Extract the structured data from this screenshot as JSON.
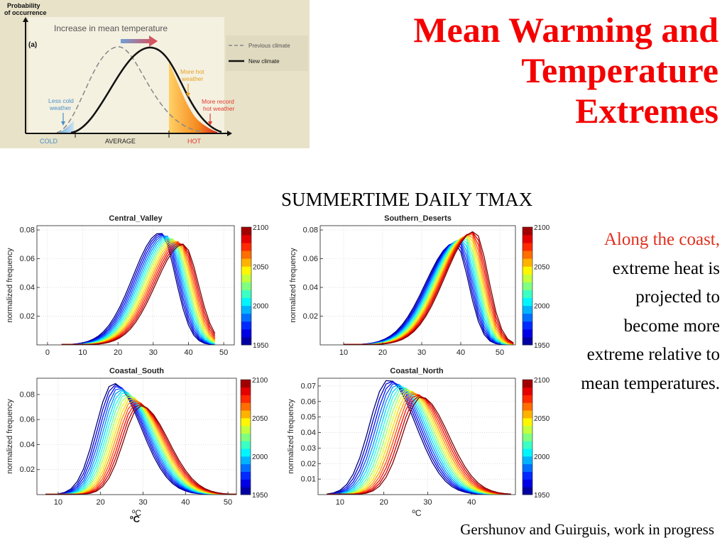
{
  "slide": {
    "title_line1": "Mean Warming and",
    "title_line2": "Temperature",
    "title_line3": "Extremes",
    "subtitle": "SUMMERTIME DAILY TMAX",
    "note_red": "Along the coast,",
    "note_black": " extreme heat is projected to become more extreme relative to mean temperatures.",
    "credit": "Gershunov and Guirguis, work in progress",
    "degc_label": "ºC"
  },
  "inset": {
    "ylabel_line1": "Probability",
    "ylabel_line2": "of occurrence",
    "panel_label": "(a)",
    "heading": "Increase in mean temperature",
    "legend_previous": "Previous climate",
    "legend_new": "New climate",
    "less_cold_line1": "Less cold",
    "less_cold_line2": "weather",
    "more_hot_line1": "More hot",
    "more_hot_line2": "weather",
    "record_line1": "More record",
    "record_line2": "hot weather",
    "cold": "COLD",
    "average": "AVERAGE",
    "hot": "HOT"
  },
  "chart_data": [
    {
      "type": "line",
      "title": "Central_Valley",
      "ylabel": "normalized frequency",
      "xlim": [
        -3,
        53
      ],
      "ylim": [
        0,
        0.083
      ],
      "xticks": [
        0,
        10,
        20,
        30,
        40,
        50
      ],
      "yticks": [
        0.02,
        0.04,
        0.06,
        0.08
      ],
      "x_axis_label": "",
      "colorbar": {
        "min": 1950,
        "max": 2100,
        "ticks": [
          1950,
          2000,
          2050,
          2100
        ]
      },
      "series_model": {
        "first_decade": 1950,
        "last_decade": 2100,
        "step": 10,
        "peak_x_first": 32,
        "peak_x_last": 38.5,
        "peak_y_first": 0.078,
        "peak_y_last": 0.07,
        "sigma_left": 7.8,
        "sigma_right": 4.3,
        "support": [
          4,
          48
        ]
      }
    },
    {
      "type": "line",
      "title": "Southern_Deserts",
      "ylabel": "normalized frequency",
      "xlim": [
        4,
        54
      ],
      "ylim": [
        0,
        0.083
      ],
      "xticks": [
        10,
        20,
        30,
        40,
        50
      ],
      "yticks": [
        0.02,
        0.04,
        0.06,
        0.08
      ],
      "x_axis_label": "",
      "colorbar": {
        "min": 1950,
        "max": 2100,
        "ticks": [
          1950,
          2000,
          2050,
          2100
        ]
      },
      "series_model": {
        "first_decade": 1950,
        "last_decade": 2100,
        "step": 10,
        "peak_x_first": 38.5,
        "peak_x_last": 43.5,
        "peak_y_first": 0.071,
        "peak_y_last": 0.079,
        "sigma_left": 7.5,
        "sigma_right": 3.5,
        "support": [
          10,
          54
        ]
      }
    },
    {
      "type": "line",
      "title": "Coastal_South",
      "ylabel": "normalized frequency",
      "xlim": [
        5,
        52
      ],
      "ylim": [
        0,
        0.093
      ],
      "xticks": [
        10,
        20,
        30,
        40,
        50
      ],
      "yticks": [
        0.02,
        0.04,
        0.06,
        0.08
      ],
      "x_axis_label": "ºC",
      "colorbar": {
        "min": 1950,
        "max": 2100,
        "ticks": [
          1950,
          2000,
          2050,
          2100
        ]
      },
      "series_model": {
        "first_decade": 1950,
        "last_decade": 2100,
        "step": 10,
        "peak_x_first": 23,
        "peak_x_last": 29.5,
        "peak_y_first": 0.089,
        "peak_y_last": 0.071,
        "sigma_left": 4.1,
        "sigma_right": 6.5,
        "support": [
          7,
          52
        ]
      }
    },
    {
      "type": "line",
      "title": "Coastal_North",
      "ylabel": "normalized frequency",
      "xlim": [
        5,
        50
      ],
      "ylim": [
        0,
        0.075
      ],
      "xticks": [
        10,
        20,
        30,
        40
      ],
      "yticks": [
        0.01,
        0.02,
        0.03,
        0.04,
        0.05,
        0.06,
        0.07
      ],
      "x_axis_label": "ºC",
      "colorbar": {
        "min": 1950,
        "max": 2100,
        "ticks": [
          1950,
          2000,
          2050,
          2100
        ]
      },
      "series_model": {
        "first_decade": 1950,
        "last_decade": 2100,
        "step": 10,
        "peak_x_first": 21,
        "peak_x_last": 28.5,
        "peak_y_first": 0.074,
        "peak_y_last": 0.063,
        "sigma_left": 4.3,
        "sigma_right": 6.3,
        "support": [
          7,
          50
        ]
      }
    }
  ]
}
